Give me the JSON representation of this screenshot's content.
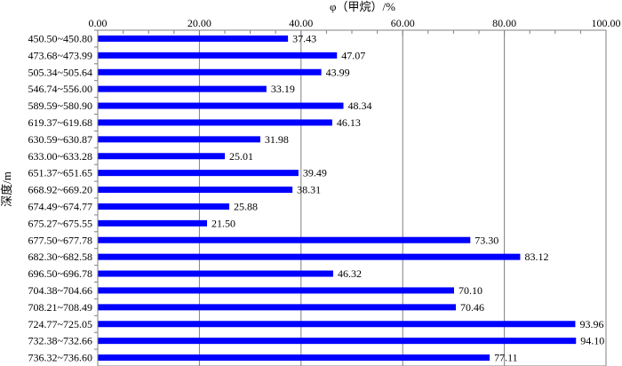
{
  "chart_data": {
    "type": "bar",
    "orientation": "horizontal",
    "title": "",
    "xlabel": "φ（甲烷）/%",
    "ylabel": "深度/m",
    "xlim": [
      0,
      100
    ],
    "xticks": [
      "0.00",
      "20.00",
      "40.00",
      "60.00",
      "80.00",
      "100.00"
    ],
    "xtick_values": [
      0,
      20,
      40,
      60,
      80,
      100
    ],
    "x_axis_position": "top",
    "grid": "vertical",
    "bar_color": "#0000ff",
    "categories": [
      "450.50~450.80",
      "473.68~473.99",
      "505.34~505.64",
      "546.74~556.00",
      "589.59~580.90",
      "619.37~619.68",
      "630.59~630.87",
      "633.00~633.28",
      "651.37~651.65",
      "668.92~669.20",
      "674.49~674.77",
      "675.27~675.55",
      "677.50~677.78",
      "682.30~682.58",
      "696.50~696.78",
      "704.38~704.66",
      "708.21~708.49",
      "724.77~725.05",
      "732.38~732.66",
      "736.32~736.60"
    ],
    "values": [
      37.43,
      47.07,
      43.99,
      33.19,
      48.34,
      46.13,
      31.98,
      25.01,
      39.49,
      38.31,
      25.88,
      21.5,
      73.3,
      83.12,
      46.32,
      70.1,
      70.46,
      93.96,
      94.1,
      77.11
    ],
    "value_labels": [
      "37.43",
      "47.07",
      "43.99",
      "33.19",
      "48.34",
      "46.13",
      "31.98",
      "25.01",
      "39.49",
      "38.31",
      "25.88",
      "21.50",
      "73.30",
      "83.12",
      "46.32",
      "70.10",
      "70.46",
      "93.96",
      "94.10",
      "77.11"
    ]
  }
}
